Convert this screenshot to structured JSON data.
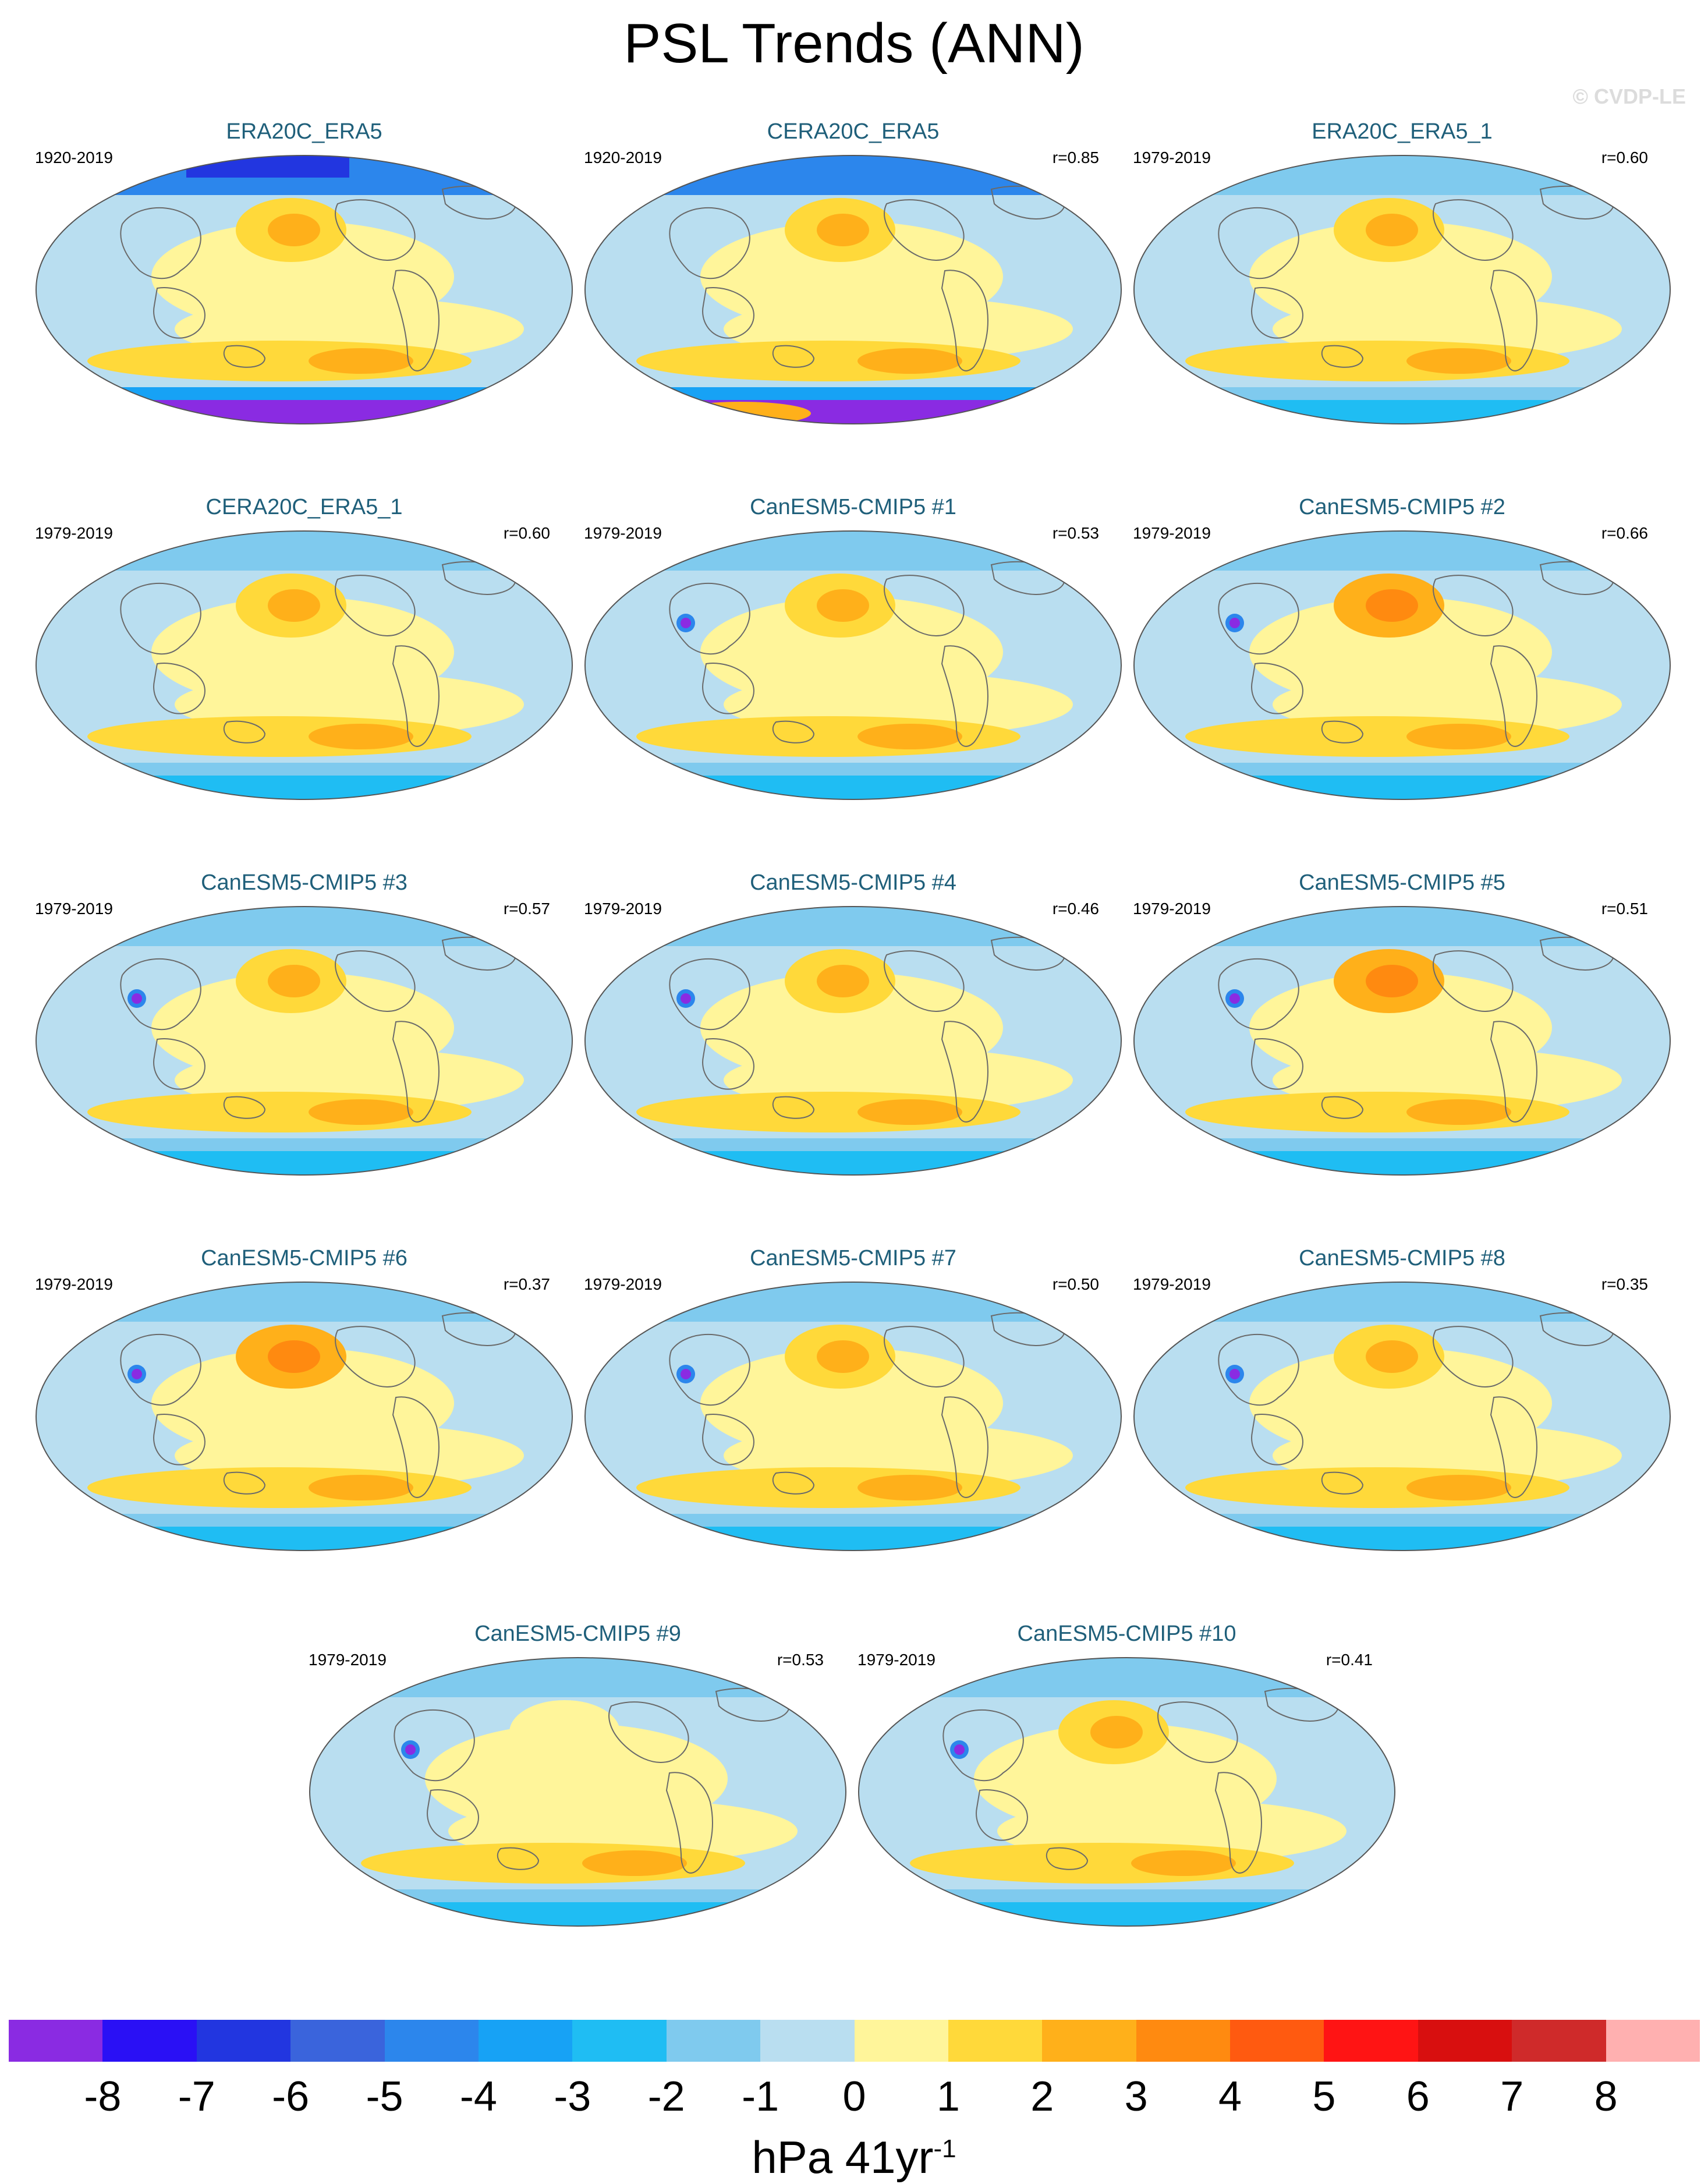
{
  "title": "PSL Trends (ANN)",
  "credit": "© CVDP-LE",
  "panels": [
    {
      "title": "ERA20C_ERA5",
      "period": "1920-2019",
      "corr": ""
    },
    {
      "title": "CERA20C_ERA5",
      "period": "1920-2019",
      "corr": "r=0.85"
    },
    {
      "title": "ERA20C_ERA5_1",
      "period": "1979-2019",
      "corr": "r=0.60"
    },
    {
      "title": "CERA20C_ERA5_1",
      "period": "1979-2019",
      "corr": "r=0.60"
    },
    {
      "title": "CanESM5-CMIP5 #1",
      "period": "1979-2019",
      "corr": "r=0.53"
    },
    {
      "title": "CanESM5-CMIP5 #2",
      "period": "1979-2019",
      "corr": "r=0.66"
    },
    {
      "title": "CanESM5-CMIP5 #3",
      "period": "1979-2019",
      "corr": "r=0.57"
    },
    {
      "title": "CanESM5-CMIP5 #4",
      "period": "1979-2019",
      "corr": "r=0.46"
    },
    {
      "title": "CanESM5-CMIP5 #5",
      "period": "1979-2019",
      "corr": "r=0.51"
    },
    {
      "title": "CanESM5-CMIP5 #6",
      "period": "1979-2019",
      "corr": "r=0.37"
    },
    {
      "title": "CanESM5-CMIP5 #7",
      "period": "1979-2019",
      "corr": "r=0.50"
    },
    {
      "title": "CanESM5-CMIP5 #8",
      "period": "1979-2019",
      "corr": "r=0.35"
    },
    {
      "title": "CanESM5-CMIP5 #9",
      "period": "1979-2019",
      "corr": "r=0.53"
    },
    {
      "title": "CanESM5-CMIP5 #10",
      "period": "1979-2019",
      "corr": "r=0.41"
    }
  ],
  "colorbar": {
    "colors": [
      "#8a2be2",
      "#2a10f5",
      "#2236e0",
      "#3a64dc",
      "#2c86ec",
      "#17a2f5",
      "#1fbdf3",
      "#7fcaee",
      "#b9def0",
      "#fff59a",
      "#ffd93a",
      "#ffb01a",
      "#ff8a10",
      "#ff5a10",
      "#ff1414",
      "#d80f0f",
      "#cf2a2a",
      "#ffb0b0"
    ],
    "labels": [
      "-8",
      "-7",
      "-6",
      "-5",
      "-4",
      "-3",
      "-2",
      "-1",
      "0",
      "1",
      "2",
      "3",
      "4",
      "5",
      "6",
      "7",
      "8"
    ],
    "units_main": "hPa 41yr",
    "units_sup": "-1"
  }
}
